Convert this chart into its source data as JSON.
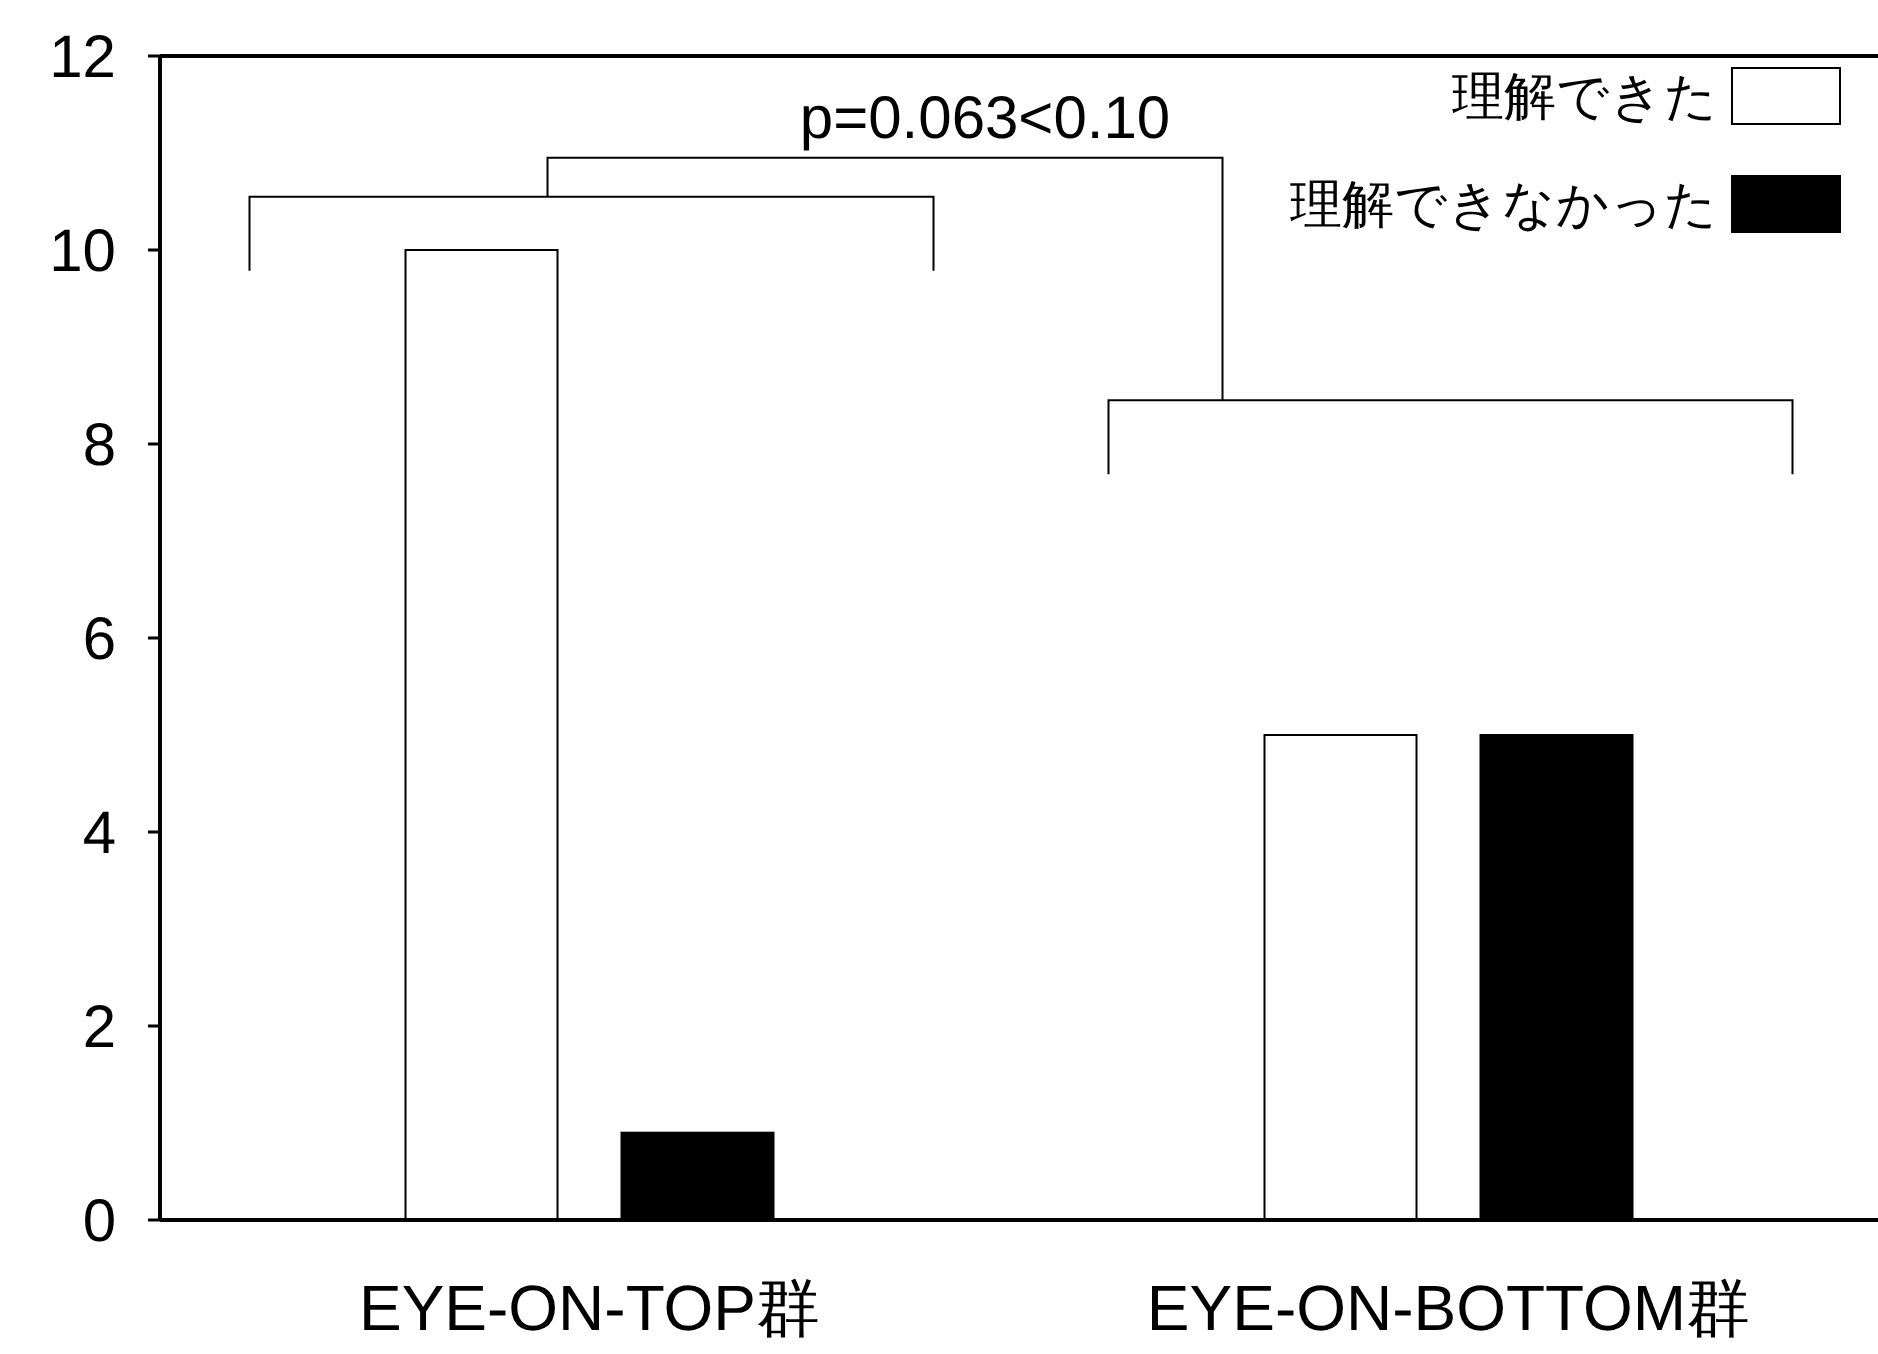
{
  "chart_data": {
    "type": "bar",
    "categories": [
      "EYE-ON-TOP群",
      "EYE-ON-BOTTOM群"
    ],
    "series": [
      {
        "name": "理解できた",
        "color": "#ffffff",
        "values": [
          10,
          5
        ]
      },
      {
        "name": "理解できなかった",
        "color": "#000000",
        "values": [
          0.9,
          5
        ]
      }
    ],
    "ylim": [
      0,
      12
    ],
    "yticks": [
      0,
      2,
      4,
      6,
      8,
      10,
      12
    ],
    "grid": false,
    "legend": "top right",
    "annotations": [
      "p=0.063<0.10"
    ]
  }
}
